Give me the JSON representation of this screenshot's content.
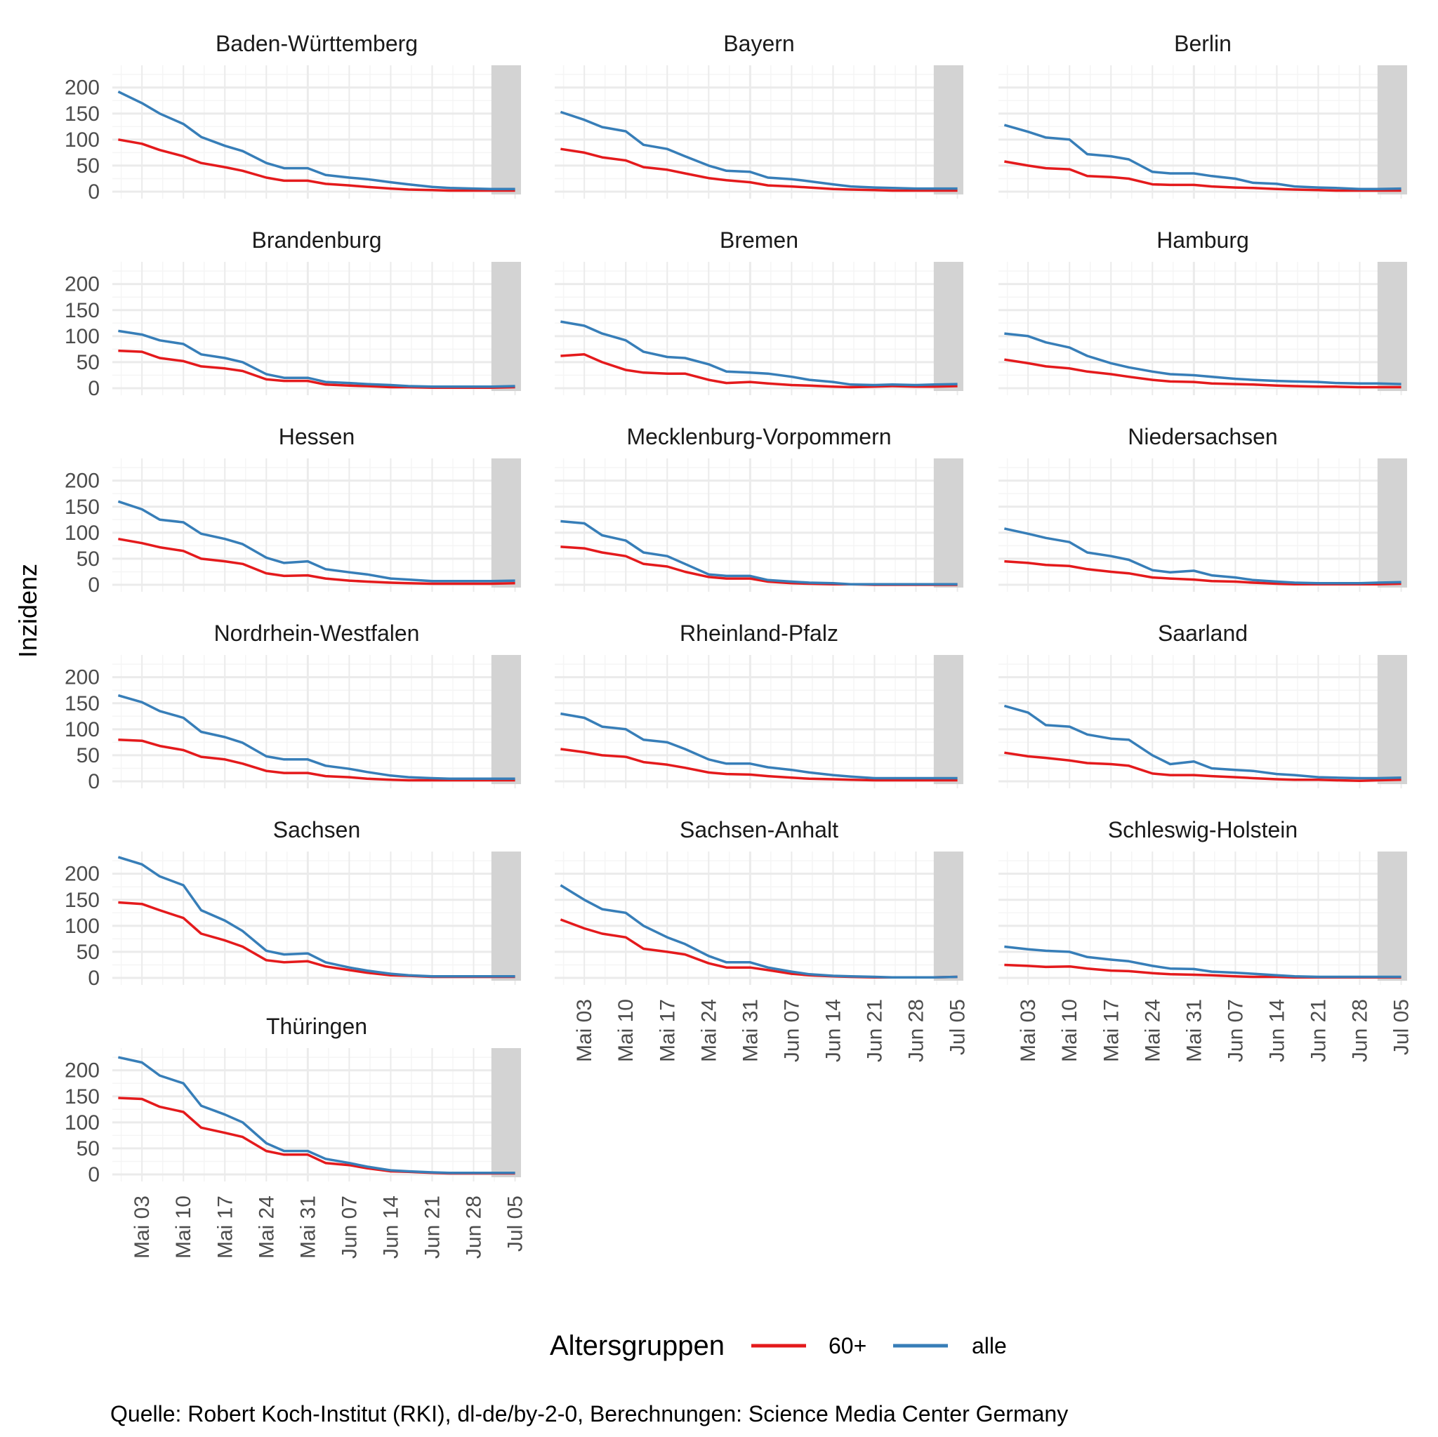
{
  "chart_data": {
    "type": "line",
    "facet": true,
    "ylabel": "Inzidenz",
    "xlabel": "",
    "ylim": [
      0,
      240
    ],
    "yticks": [
      0,
      50,
      100,
      150,
      200
    ],
    "xlim_days_from_may03": [
      -5,
      64
    ],
    "xticks": [
      {
        "day": 0,
        "label": "Mai 03"
      },
      {
        "day": 7,
        "label": "Mai 10"
      },
      {
        "day": 14,
        "label": "Mai 17"
      },
      {
        "day": 21,
        "label": "Mai 24"
      },
      {
        "day": 28,
        "label": "Mai 31"
      },
      {
        "day": 35,
        "label": "Jun 07"
      },
      {
        "day": 42,
        "label": "Jun 14"
      },
      {
        "day": 49,
        "label": "Jun 21"
      },
      {
        "day": 56,
        "label": "Jun 28"
      },
      {
        "day": 63,
        "label": "Jul 05"
      }
    ],
    "shaded_region_days": [
      59,
      64
    ],
    "grid": true,
    "legend": {
      "title": "Altersgruppen",
      "position": "bottom",
      "entries": [
        {
          "name": "60+",
          "color": "#e41a1c"
        },
        {
          "name": "alle",
          "color": "#377eb8"
        }
      ]
    },
    "x_days": [
      -4,
      0,
      3,
      7,
      10,
      14,
      17,
      21,
      24,
      28,
      31,
      35,
      38,
      42,
      45,
      49,
      52,
      56,
      59,
      63
    ],
    "panels": [
      {
        "title": "Baden-Württemberg",
        "series": [
          {
            "name": "60+",
            "values": [
              100,
              92,
              80,
              68,
              55,
              47,
              40,
              27,
              21,
              21,
              15,
              12,
              9,
              6,
              4,
              3,
              2,
              2,
              2,
              2
            ]
          },
          {
            "name": "alle",
            "values": [
              192,
              170,
              150,
              130,
              105,
              88,
              78,
              55,
              45,
              45,
              32,
              27,
              24,
              18,
              14,
              9,
              7,
              6,
              5,
              5
            ]
          }
        ]
      },
      {
        "title": "Bayern",
        "series": [
          {
            "name": "60+",
            "values": [
              82,
              75,
              66,
              60,
              47,
              42,
              35,
              26,
              22,
              18,
              12,
              10,
              8,
              5,
              4,
              3,
              2,
              2,
              2,
              2
            ]
          },
          {
            "name": "alle",
            "values": [
              153,
              138,
              124,
              116,
              90,
              82,
              68,
              50,
              40,
              38,
              27,
              24,
              20,
              14,
              10,
              8,
              7,
              6,
              6,
              6
            ]
          }
        ]
      },
      {
        "title": "Berlin",
        "series": [
          {
            "name": "60+",
            "values": [
              58,
              50,
              45,
              43,
              30,
              28,
              25,
              14,
              13,
              13,
              10,
              8,
              7,
              5,
              4,
              3,
              2,
              2,
              2,
              2
            ]
          },
          {
            "name": "alle",
            "values": [
              128,
              115,
              104,
              100,
              72,
              68,
              62,
              38,
              35,
              35,
              30,
              25,
              17,
              15,
              10,
              8,
              7,
              5,
              5,
              6
            ]
          }
        ]
      },
      {
        "title": "Brandenburg",
        "series": [
          {
            "name": "60+",
            "values": [
              72,
              70,
              58,
              52,
              42,
              38,
              33,
              17,
              14,
              14,
              7,
              5,
              4,
              2,
              2,
              1,
              1,
              1,
              1,
              2
            ]
          },
          {
            "name": "alle",
            "values": [
              110,
              103,
              92,
              85,
              65,
              58,
              50,
              27,
              20,
              20,
              12,
              10,
              8,
              6,
              4,
              3,
              3,
              3,
              3,
              4
            ]
          }
        ]
      },
      {
        "title": "Bremen",
        "series": [
          {
            "name": "60+",
            "values": [
              62,
              65,
              50,
              35,
              30,
              28,
              28,
              16,
              10,
              12,
              9,
              6,
              5,
              3,
              2,
              3,
              4,
              3,
              3,
              4
            ]
          },
          {
            "name": "alle",
            "values": [
              128,
              120,
              105,
              92,
              70,
              60,
              58,
              46,
              32,
              30,
              28,
              22,
              16,
              12,
              7,
              6,
              7,
              6,
              7,
              8
            ]
          }
        ]
      },
      {
        "title": "Hamburg",
        "series": [
          {
            "name": "60+",
            "values": [
              55,
              48,
              42,
              38,
              32,
              27,
              22,
              16,
              13,
              12,
              9,
              8,
              7,
              5,
              4,
              3,
              3,
              2,
              2,
              2
            ]
          },
          {
            "name": "alle",
            "values": [
              105,
              100,
              88,
              78,
              62,
              48,
              40,
              32,
              27,
              25,
              22,
              18,
              16,
              14,
              13,
              12,
              10,
              9,
              9,
              8
            ]
          }
        ]
      },
      {
        "title": "Hessen",
        "series": [
          {
            "name": "60+",
            "values": [
              88,
              80,
              72,
              65,
              50,
              45,
              40,
              22,
              17,
              18,
              12,
              8,
              6,
              4,
              3,
              2,
              2,
              2,
              2,
              3
            ]
          },
          {
            "name": "alle",
            "values": [
              160,
              145,
              125,
              120,
              98,
              88,
              78,
              52,
              42,
              45,
              30,
              24,
              20,
              12,
              10,
              7,
              7,
              7,
              7,
              8
            ]
          }
        ]
      },
      {
        "title": "Mecklenburg-Vorpommern",
        "series": [
          {
            "name": "60+",
            "values": [
              73,
              70,
              62,
              55,
              40,
              35,
              25,
              15,
              12,
              12,
              6,
              3,
              2,
              1,
              1,
              0,
              0,
              0,
              0,
              0
            ]
          },
          {
            "name": "alle",
            "values": [
              122,
              118,
              95,
              85,
              62,
              55,
              40,
              20,
              17,
              17,
              9,
              6,
              4,
              3,
              1,
              1,
              1,
              1,
              1,
              1
            ]
          }
        ]
      },
      {
        "title": "Niedersachsen",
        "series": [
          {
            "name": "60+",
            "values": [
              45,
              42,
              38,
              36,
              30,
              25,
              22,
              14,
              12,
              10,
              7,
              6,
              4,
              2,
              1,
              1,
              1,
              1,
              1,
              2
            ]
          },
          {
            "name": "alle",
            "values": [
              108,
              98,
              90,
              82,
              62,
              55,
              48,
              28,
              24,
              27,
              18,
              14,
              9,
              6,
              4,
              3,
              3,
              3,
              4,
              5
            ]
          }
        ]
      },
      {
        "title": "Nordrhein-Westfalen",
        "series": [
          {
            "name": "60+",
            "values": [
              80,
              78,
              68,
              60,
              47,
              42,
              34,
              20,
              16,
              16,
              10,
              8,
              5,
              3,
              2,
              2,
              2,
              2,
              2,
              2
            ]
          },
          {
            "name": "alle",
            "values": [
              165,
              152,
              135,
              122,
              95,
              85,
              74,
              48,
              42,
              42,
              30,
              24,
              18,
              11,
              8,
              6,
              5,
              5,
              5,
              5
            ]
          }
        ]
      },
      {
        "title": "Rheinland-Pfalz",
        "series": [
          {
            "name": "60+",
            "values": [
              62,
              56,
              50,
              47,
              37,
              32,
              26,
              17,
              14,
              13,
              10,
              7,
              5,
              4,
              3,
              2,
              2,
              2,
              2,
              2
            ]
          },
          {
            "name": "alle",
            "values": [
              130,
              122,
              105,
              100,
              80,
              75,
              62,
              42,
              34,
              34,
              27,
              22,
              17,
              12,
              9,
              6,
              6,
              6,
              6,
              6
            ]
          }
        ]
      },
      {
        "title": "Saarland",
        "series": [
          {
            "name": "60+",
            "values": [
              55,
              48,
              45,
              40,
              35,
              33,
              30,
              15,
              12,
              12,
              10,
              8,
              6,
              4,
              3,
              3,
              2,
              1,
              2,
              3
            ]
          },
          {
            "name": "alle",
            "values": [
              145,
              132,
              108,
              105,
              90,
              82,
              80,
              50,
              33,
              38,
              25,
              22,
              20,
              14,
              12,
              8,
              7,
              6,
              6,
              7
            ]
          }
        ]
      },
      {
        "title": "Sachsen",
        "series": [
          {
            "name": "60+",
            "values": [
              145,
              142,
              130,
              115,
              85,
              72,
              60,
              34,
              30,
              32,
              22,
              15,
              10,
              5,
              4,
              2,
              2,
              2,
              2,
              2
            ]
          },
          {
            "name": "alle",
            "values": [
              232,
              218,
              195,
              178,
              130,
              110,
              90,
              52,
              45,
              47,
              30,
              20,
              14,
              8,
              5,
              3,
              3,
              3,
              3,
              3
            ]
          }
        ]
      },
      {
        "title": "Sachsen-Anhalt",
        "series": [
          {
            "name": "60+",
            "values": [
              112,
              95,
              85,
              78,
              56,
              50,
              45,
              28,
              20,
              20,
              15,
              8,
              5,
              3,
              2,
              1,
              1,
              1,
              1,
              2
            ]
          },
          {
            "name": "alle",
            "values": [
              178,
              150,
              132,
              125,
              100,
              78,
              65,
              42,
              30,
              30,
              20,
              12,
              7,
              4,
              3,
              2,
              1,
              1,
              1,
              2
            ]
          }
        ]
      },
      {
        "title": "Schleswig-Holstein",
        "series": [
          {
            "name": "60+",
            "values": [
              25,
              23,
              21,
              22,
              18,
              14,
              13,
              9,
              7,
              6,
              5,
              3,
              2,
              2,
              1,
              1,
              1,
              1,
              1,
              1
            ]
          },
          {
            "name": "alle",
            "values": [
              60,
              55,
              52,
              50,
              40,
              35,
              32,
              23,
              18,
              17,
              12,
              10,
              8,
              5,
              3,
              2,
              2,
              2,
              2,
              2
            ]
          }
        ]
      },
      {
        "title": "Thüringen",
        "series": [
          {
            "name": "60+",
            "values": [
              147,
              145,
              130,
              120,
              90,
              80,
              72,
              45,
              38,
              38,
              22,
              18,
              12,
              6,
              5,
              3,
              2,
              2,
              2,
              2
            ]
          },
          {
            "name": "alle",
            "values": [
              225,
              215,
              190,
              175,
              132,
              115,
              100,
              60,
              45,
              45,
              30,
              22,
              15,
              8,
              6,
              4,
              3,
              3,
              3,
              3
            ]
          }
        ]
      }
    ],
    "caption": "Quelle: Robert Koch-Institut (RKI), dl-de/by-2-0, Berechnungen: Science Media Center Germany"
  },
  "colors": {
    "series_60plus": "#e41a1c",
    "series_alle": "#377eb8",
    "shade": "#d3d3d3",
    "grid_major": "#ebebeb",
    "grid_minor": "#f5f5f5"
  }
}
